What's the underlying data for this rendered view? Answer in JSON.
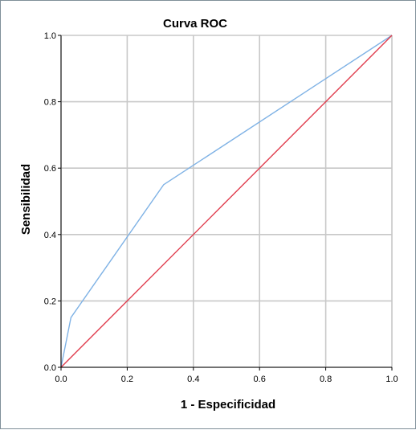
{
  "chart_data": {
    "type": "line",
    "title": "Curva ROC",
    "xlabel": "1 - Especificidad",
    "ylabel": "Sensibilidad",
    "xlim": [
      0.0,
      1.0
    ],
    "ylim": [
      0.0,
      1.0
    ],
    "grid": true,
    "x_ticks": [
      "0.0",
      "0.2",
      "0.4",
      "0.6",
      "0.8",
      "1.0"
    ],
    "y_ticks": [
      "0.0",
      "0.2",
      "0.4",
      "0.6",
      "0.8",
      "1.0"
    ],
    "colors": {
      "roc_curve": "#7fb2e5",
      "reference_line": "#e03c4d",
      "grid": "#c8c8c8",
      "frame_border": "#7f8f99"
    },
    "series": [
      {
        "points": [
          [
            0.0,
            0.0
          ],
          [
            0.03,
            0.15
          ],
          [
            0.31,
            0.55
          ],
          [
            1.0,
            1.0
          ]
        ]
      },
      {
        "points": [
          [
            0.0,
            0.0
          ],
          [
            1.0,
            1.0
          ]
        ]
      }
    ]
  }
}
